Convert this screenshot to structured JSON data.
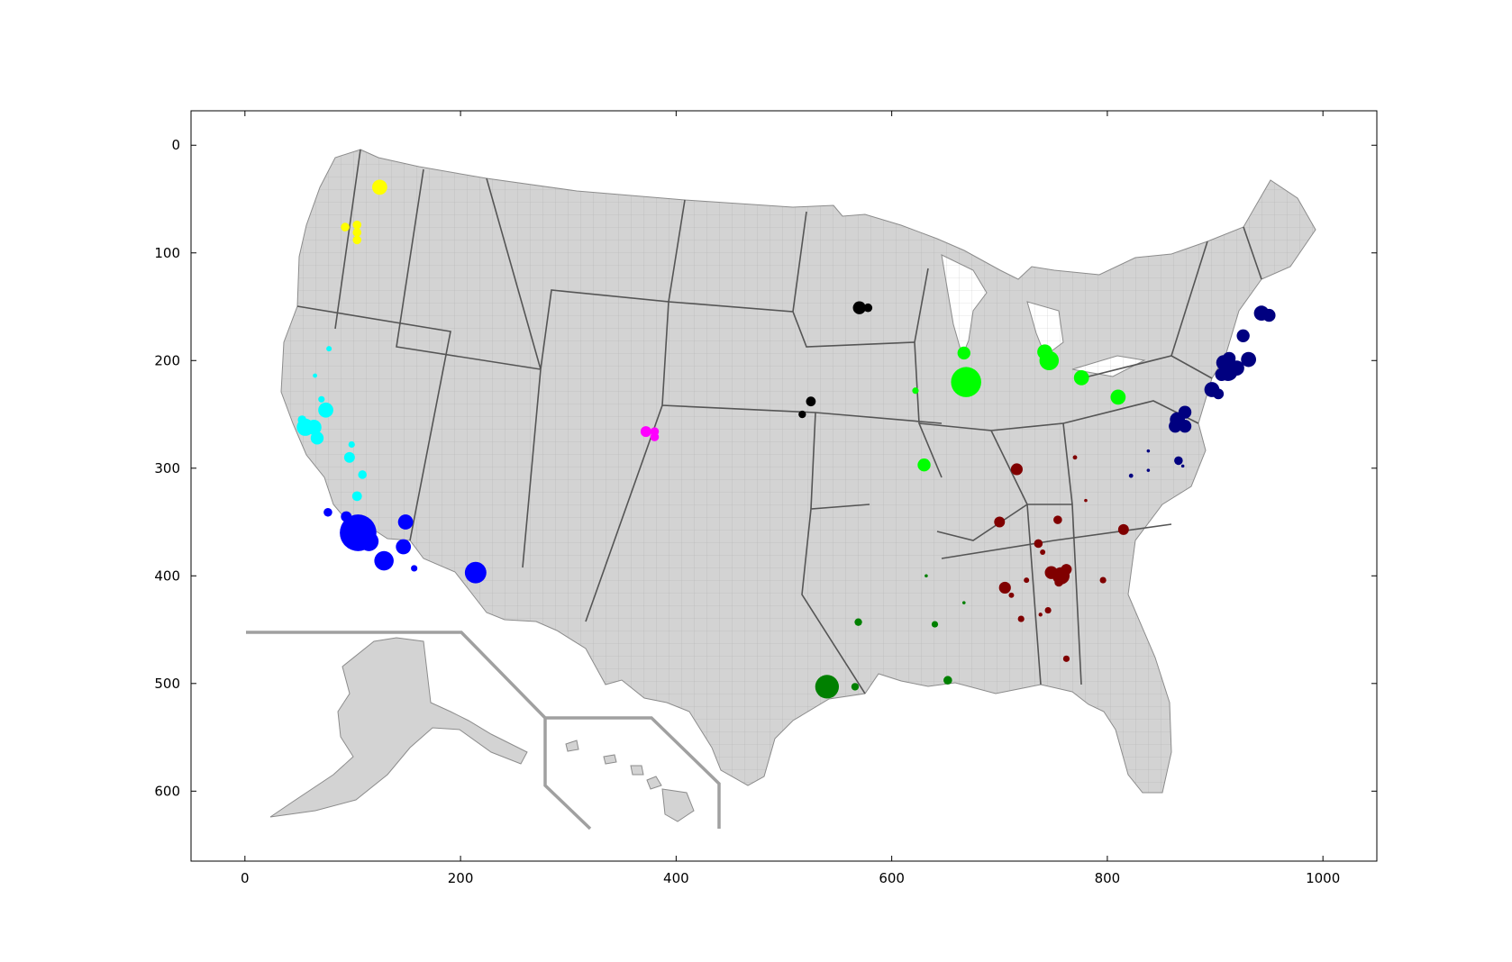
{
  "chart_data": {
    "type": "scatter",
    "title": "",
    "xlabel": "",
    "ylabel": "",
    "xlim": [
      -50,
      1050
    ],
    "ylim": [
      665,
      -32
    ],
    "y_inverted": true,
    "grid": false,
    "legend": "none",
    "x_ticks": [
      {
        "value": 0,
        "label": "0"
      },
      {
        "value": 200,
        "label": "200"
      },
      {
        "value": 400,
        "label": "400"
      },
      {
        "value": 600,
        "label": "600"
      },
      {
        "value": 800,
        "label": "800"
      },
      {
        "value": 1000,
        "label": "1000"
      }
    ],
    "y_ticks": [
      {
        "value": 0,
        "label": "0"
      },
      {
        "value": 100,
        "label": "100"
      },
      {
        "value": 200,
        "label": "200"
      },
      {
        "value": 300,
        "label": "300"
      },
      {
        "value": 400,
        "label": "400"
      },
      {
        "value": 500,
        "label": "500"
      },
      {
        "value": 600,
        "label": "600"
      }
    ],
    "background_map": {
      "fill": "#d3d3d3",
      "county_stroke": "#8c8c8c",
      "state_stroke": "#555555",
      "inset_stroke": "#a0a0a0"
    },
    "series": [
      {
        "color": "#ffff00",
        "points": [
          {
            "x": 125,
            "y": 39,
            "size": 7
          },
          {
            "x": 93,
            "y": 76,
            "size": 4
          },
          {
            "x": 104,
            "y": 74,
            "size": 4
          },
          {
            "x": 104,
            "y": 81,
            "size": 4
          },
          {
            "x": 104,
            "y": 88,
            "size": 4
          }
        ]
      },
      {
        "color": "#00ffff",
        "points": [
          {
            "x": 78,
            "y": 189,
            "size": 2.5
          },
          {
            "x": 65,
            "y": 214,
            "size": 2
          },
          {
            "x": 71,
            "y": 236,
            "size": 3
          },
          {
            "x": 75,
            "y": 246,
            "size": 7
          },
          {
            "x": 53,
            "y": 255,
            "size": 4
          },
          {
            "x": 56,
            "y": 262,
            "size": 8
          },
          {
            "x": 64,
            "y": 262,
            "size": 7
          },
          {
            "x": 67,
            "y": 272,
            "size": 6
          },
          {
            "x": 99,
            "y": 278,
            "size": 3
          },
          {
            "x": 97,
            "y": 290,
            "size": 5
          },
          {
            "x": 109,
            "y": 306,
            "size": 4
          },
          {
            "x": 104,
            "y": 326,
            "size": 4.5
          }
        ]
      },
      {
        "color": "#0000ff",
        "points": [
          {
            "x": 77,
            "y": 341,
            "size": 4
          },
          {
            "x": 94,
            "y": 345,
            "size": 5
          },
          {
            "x": 105,
            "y": 360,
            "size": 17
          },
          {
            "x": 115,
            "y": 368,
            "size": 9
          },
          {
            "x": 149,
            "y": 350,
            "size": 7
          },
          {
            "x": 147,
            "y": 373,
            "size": 7
          },
          {
            "x": 129,
            "y": 386,
            "size": 9
          },
          {
            "x": 157,
            "y": 393,
            "size": 3
          },
          {
            "x": 214,
            "y": 397,
            "size": 10
          }
        ]
      },
      {
        "color": "#ff00ff",
        "points": [
          {
            "x": 372,
            "y": 266,
            "size": 5
          },
          {
            "x": 380,
            "y": 266,
            "size": 4
          },
          {
            "x": 380,
            "y": 271,
            "size": 4
          }
        ]
      },
      {
        "color": "#000000",
        "points": [
          {
            "x": 570,
            "y": 151,
            "size": 6
          },
          {
            "x": 578,
            "y": 151,
            "size": 4
          },
          {
            "x": 525,
            "y": 238,
            "size": 4.5
          },
          {
            "x": 517,
            "y": 250,
            "size": 3.5
          }
        ]
      },
      {
        "color": "#00ff00",
        "points": [
          {
            "x": 667,
            "y": 193,
            "size": 6
          },
          {
            "x": 669,
            "y": 220,
            "size": 14
          },
          {
            "x": 622,
            "y": 228,
            "size": 3
          },
          {
            "x": 742,
            "y": 192,
            "size": 7
          },
          {
            "x": 746,
            "y": 200,
            "size": 9
          },
          {
            "x": 776,
            "y": 216,
            "size": 7
          },
          {
            "x": 810,
            "y": 234,
            "size": 7
          },
          {
            "x": 630,
            "y": 297,
            "size": 6
          }
        ]
      },
      {
        "color": "#008000",
        "points": [
          {
            "x": 540,
            "y": 503,
            "size": 11
          },
          {
            "x": 569,
            "y": 443,
            "size": 3.5
          },
          {
            "x": 566,
            "y": 503,
            "size": 3.5
          },
          {
            "x": 640,
            "y": 445,
            "size": 3
          },
          {
            "x": 652,
            "y": 497,
            "size": 4
          },
          {
            "x": 632,
            "y": 400,
            "size": 1.5
          },
          {
            "x": 667,
            "y": 425,
            "size": 1.5
          }
        ]
      },
      {
        "color": "#800000",
        "points": [
          {
            "x": 716,
            "y": 301,
            "size": 5.5
          },
          {
            "x": 700,
            "y": 350,
            "size": 5
          },
          {
            "x": 754,
            "y": 348,
            "size": 4
          },
          {
            "x": 736,
            "y": 370,
            "size": 4
          },
          {
            "x": 740,
            "y": 378,
            "size": 2.5
          },
          {
            "x": 815,
            "y": 357,
            "size": 5
          },
          {
            "x": 748,
            "y": 397,
            "size": 6
          },
          {
            "x": 757,
            "y": 400,
            "size": 8
          },
          {
            "x": 762,
            "y": 394,
            "size": 5
          },
          {
            "x": 755,
            "y": 406,
            "size": 4
          },
          {
            "x": 705,
            "y": 411,
            "size": 5.5
          },
          {
            "x": 711,
            "y": 418,
            "size": 2.5
          },
          {
            "x": 725,
            "y": 404,
            "size": 2.5
          },
          {
            "x": 796,
            "y": 404,
            "size": 3
          },
          {
            "x": 745,
            "y": 432,
            "size": 3
          },
          {
            "x": 738,
            "y": 436,
            "size": 1.8
          },
          {
            "x": 720,
            "y": 440,
            "size": 3
          },
          {
            "x": 762,
            "y": 477,
            "size": 3
          },
          {
            "x": 770,
            "y": 290,
            "size": 2
          },
          {
            "x": 780,
            "y": 330,
            "size": 1.5
          }
        ]
      },
      {
        "color": "#000080",
        "points": [
          {
            "x": 943,
            "y": 156,
            "size": 7
          },
          {
            "x": 950,
            "y": 158,
            "size": 6
          },
          {
            "x": 926,
            "y": 177,
            "size": 6
          },
          {
            "x": 908,
            "y": 202,
            "size": 7
          },
          {
            "x": 912,
            "y": 210,
            "size": 9
          },
          {
            "x": 920,
            "y": 207,
            "size": 7
          },
          {
            "x": 906,
            "y": 213,
            "size": 6
          },
          {
            "x": 913,
            "y": 198,
            "size": 6
          },
          {
            "x": 931,
            "y": 199,
            "size": 7
          },
          {
            "x": 897,
            "y": 227,
            "size": 7
          },
          {
            "x": 903,
            "y": 231,
            "size": 5
          },
          {
            "x": 872,
            "y": 248,
            "size": 6
          },
          {
            "x": 865,
            "y": 255,
            "size": 7
          },
          {
            "x": 863,
            "y": 261,
            "size": 6
          },
          {
            "x": 872,
            "y": 261,
            "size": 6
          },
          {
            "x": 860,
            "y": 258,
            "size": 2
          },
          {
            "x": 838,
            "y": 284,
            "size": 1.5
          },
          {
            "x": 866,
            "y": 293,
            "size": 4
          },
          {
            "x": 870,
            "y": 298,
            "size": 1.5
          },
          {
            "x": 838,
            "y": 302,
            "size": 1.5
          },
          {
            "x": 822,
            "y": 307,
            "size": 2
          }
        ]
      }
    ]
  }
}
